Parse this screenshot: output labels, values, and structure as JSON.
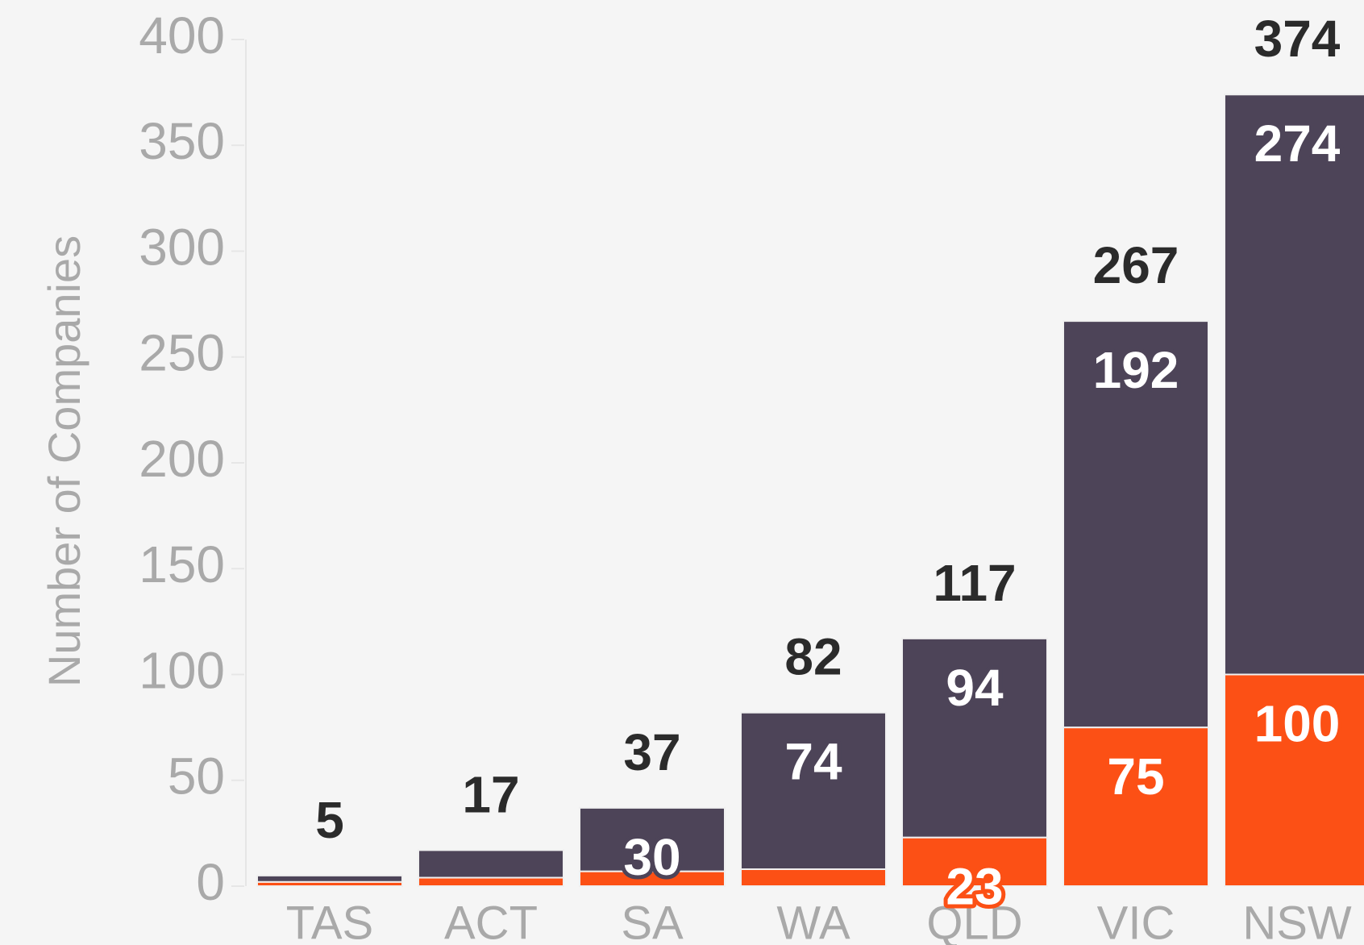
{
  "chart_data": {
    "type": "stacked_bar",
    "ylabel": "Number of Companies",
    "categories": [
      "TAS",
      "ACT",
      "SA",
      "WA",
      "QLD",
      "VIC",
      "NSW"
    ],
    "series": [
      {
        "color": "#fc5015",
        "values": [
          2,
          4,
          7,
          8,
          23,
          75,
          100
        ]
      },
      {
        "color": "#4d4458",
        "values": [
          3,
          13,
          30,
          74,
          94,
          192,
          274
        ]
      }
    ],
    "totals": [
      5,
      17,
      37,
      82,
      117,
      267,
      374
    ],
    "ylim": [
      0,
      400
    ],
    "yticks": [
      0,
      50,
      100,
      150,
      200,
      250,
      300,
      350,
      400
    ]
  }
}
